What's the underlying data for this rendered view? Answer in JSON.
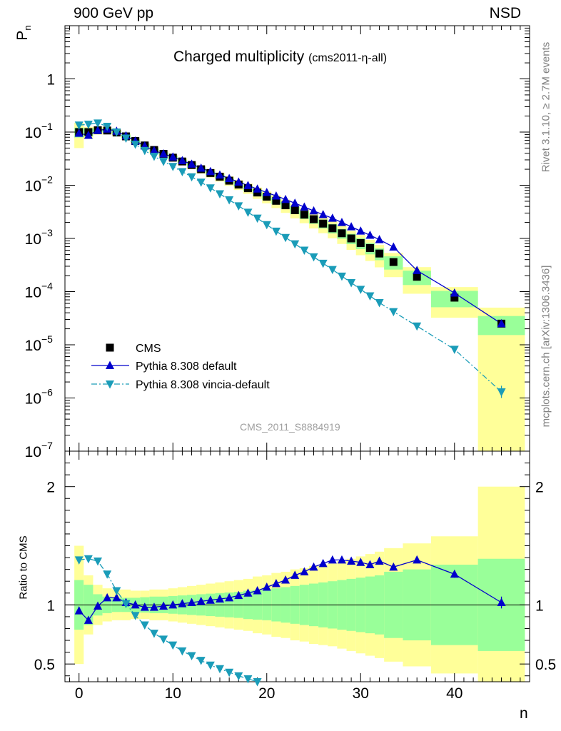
{
  "header": {
    "energy_label": "900 GeV pp",
    "process_label": "NSD"
  },
  "side_labels": {
    "rivet": "Rivet 3.1.10, ≥ 2.7M events",
    "mcplots": "mcplots.cern.ch [arXiv:1306.3436]"
  },
  "chart_data": {
    "type": "scatter",
    "title_main": "Charged multiplicity",
    "title_sub": "(cms2011-η-all)",
    "watermark": "CMS_2011_S8884919",
    "xlabel": "n",
    "ylabel_top": "P",
    "ylabel_top_sub": "n",
    "ylabel_bottom": "Ratio to CMS",
    "top_ylog": true,
    "top_ylim": [
      1e-07,
      10
    ],
    "top_yticks": [
      {
        "v": 1,
        "label": "1",
        "exp": ""
      },
      {
        "v": 0.1,
        "label": "10",
        "exp": "−1"
      },
      {
        "v": 0.01,
        "label": "10",
        "exp": "−2"
      },
      {
        "v": 0.001,
        "label": "10",
        "exp": "−3"
      },
      {
        "v": 0.0001,
        "label": "10",
        "exp": "−4"
      },
      {
        "v": 1e-05,
        "label": "10",
        "exp": "−5"
      },
      {
        "v": 1e-06,
        "label": "10",
        "exp": "−6"
      },
      {
        "v": 1e-07,
        "label": "10",
        "exp": "−7"
      }
    ],
    "xlim": [
      -1.5,
      48
    ],
    "xticks": [
      0,
      10,
      20,
      30,
      40
    ],
    "bottom_ylim": [
      0.35,
      2.3
    ],
    "bottom_yticks": [
      {
        "v": 0.5,
        "label": "0.5"
      },
      {
        "v": 1,
        "label": "1"
      },
      {
        "v": 2,
        "label": "2"
      }
    ],
    "legend": [
      {
        "name": "CMS",
        "marker": "square",
        "color": "#000000"
      },
      {
        "name": "Pythia 8.308 default",
        "marker": "triangle-up",
        "color": "#0000cc"
      },
      {
        "name": "Pythia 8.308 vincia-default",
        "marker": "triangle-down",
        "color": "#1a9cb8"
      }
    ],
    "series": [
      {
        "name": "CMS",
        "x": [
          0,
          1,
          2,
          3,
          4,
          5,
          6,
          7,
          8,
          9,
          10,
          11,
          12,
          13,
          14,
          15,
          16,
          17,
          18,
          19,
          20,
          21,
          22,
          23,
          24,
          25,
          26,
          27,
          28,
          29,
          30,
          31,
          32,
          33.5,
          36,
          40,
          45
        ],
        "y": [
          0.1,
          0.1,
          0.108,
          0.107,
          0.098,
          0.083,
          0.068,
          0.056,
          0.046,
          0.039,
          0.033,
          0.028,
          0.024,
          0.02,
          0.017,
          0.0145,
          0.0122,
          0.0103,
          0.0088,
          0.0073,
          0.0061,
          0.0051,
          0.0042,
          0.0034,
          0.0028,
          0.0023,
          0.0019,
          0.00155,
          0.00125,
          0.001,
          0.00082,
          0.00066,
          0.00052,
          0.00036,
          0.00019,
          7.7e-05,
          2.5e-05
        ]
      },
      {
        "name": "Pythia 8.308 default",
        "x": [
          0,
          1,
          2,
          3,
          4,
          5,
          6,
          7,
          8,
          9,
          10,
          11,
          12,
          13,
          14,
          15,
          16,
          17,
          18,
          19,
          20,
          21,
          22,
          23,
          24,
          25,
          26,
          27,
          28,
          29,
          30,
          31,
          32,
          33.5,
          36,
          40,
          45
        ],
        "y": [
          0.095,
          0.087,
          0.107,
          0.114,
          0.104,
          0.085,
          0.068,
          0.055,
          0.045,
          0.039,
          0.034,
          0.029,
          0.025,
          0.021,
          0.0181,
          0.0156,
          0.0134,
          0.0115,
          0.0099,
          0.0085,
          0.0073,
          0.0063,
          0.0054,
          0.0046,
          0.0039,
          0.0033,
          0.0028,
          0.0024,
          0.002,
          0.00166,
          0.00138,
          0.00115,
          0.00095,
          0.00069,
          0.00025,
          9.4e-05,
          2.5e-05
        ]
      },
      {
        "name": "Pythia 8.308 vincia-default",
        "x": [
          0,
          1,
          2,
          3,
          4,
          5,
          6,
          7,
          8,
          9,
          10,
          11,
          12,
          13,
          14,
          15,
          16,
          17,
          18,
          19,
          20,
          21,
          22,
          23,
          24,
          25,
          26,
          27,
          28,
          29,
          30,
          31,
          32,
          33.5,
          36,
          40,
          45
        ],
        "y": [
          0.135,
          0.14,
          0.148,
          0.128,
          0.1,
          0.077,
          0.059,
          0.045,
          0.035,
          0.028,
          0.0225,
          0.018,
          0.0144,
          0.0114,
          0.0089,
          0.0069,
          0.0053,
          0.0041,
          0.0031,
          0.0024,
          0.00181,
          0.00137,
          0.00104,
          0.00079,
          0.0006,
          0.00045,
          0.00034,
          0.00026,
          0.000195,
          0.000147,
          0.00011,
          8.3e-05,
          6.2e-05,
          4.2e-05,
          2.25e-05,
          8.2e-06,
          1.3e-06
        ]
      }
    ],
    "ratios": [
      {
        "name": "Pythia 8.308 default",
        "x": [
          0,
          1,
          2,
          3,
          4,
          5,
          6,
          7,
          8,
          9,
          10,
          11,
          12,
          13,
          14,
          15,
          16,
          17,
          18,
          19,
          20,
          21,
          22,
          23,
          24,
          25,
          26,
          27,
          28,
          29,
          30,
          31,
          32,
          33.5,
          36,
          40,
          45
        ],
        "y": [
          0.95,
          0.87,
          0.99,
          1.06,
          1.06,
          1.02,
          1.0,
          0.98,
          0.98,
          0.99,
          1.0,
          1.01,
          1.02,
          1.03,
          1.04,
          1.05,
          1.06,
          1.08,
          1.1,
          1.12,
          1.15,
          1.18,
          1.21,
          1.25,
          1.28,
          1.32,
          1.35,
          1.38,
          1.38,
          1.37,
          1.36,
          1.34,
          1.37,
          1.32,
          1.38,
          1.26,
          1.02
        ]
      },
      {
        "name": "Pythia 8.308 vincia-default",
        "x": [
          0,
          1,
          2,
          3,
          4,
          5,
          6,
          7,
          8,
          9,
          10,
          11,
          12,
          13,
          14,
          15,
          16,
          17,
          18,
          19
        ],
        "y": [
          1.38,
          1.39,
          1.37,
          1.26,
          1.12,
          1.01,
          0.91,
          0.83,
          0.76,
          0.71,
          0.66,
          0.61,
          0.57,
          0.53,
          0.49,
          0.46,
          0.43,
          0.4,
          0.375,
          0.35
        ]
      }
    ],
    "uncertainty_bands": {
      "edges": [
        -0.5,
        0.5,
        1.5,
        2.5,
        3.5,
        4.5,
        5.5,
        6.5,
        7.5,
        8.5,
        9.5,
        10.5,
        11.5,
        12.5,
        13.5,
        14.5,
        15.5,
        16.5,
        17.5,
        18.5,
        19.5,
        20.5,
        21.5,
        22.5,
        23.5,
        24.5,
        25.5,
        26.5,
        27.5,
        28.5,
        29.5,
        30.5,
        31.5,
        32.5,
        34.5,
        37.5,
        42.5,
        47.5
      ],
      "inner_half_width": [
        0.21,
        0.17,
        0.09,
        0.07,
        0.06,
        0.06,
        0.06,
        0.065,
        0.07,
        0.07,
        0.075,
        0.08,
        0.085,
        0.09,
        0.095,
        0.1,
        0.105,
        0.11,
        0.12,
        0.125,
        0.13,
        0.14,
        0.15,
        0.16,
        0.17,
        0.18,
        0.19,
        0.2,
        0.21,
        0.22,
        0.23,
        0.24,
        0.25,
        0.28,
        0.3,
        0.34,
        0.39
      ],
      "outer_half_width": [
        0.5,
        0.25,
        0.17,
        0.14,
        0.13,
        0.13,
        0.12,
        0.12,
        0.13,
        0.13,
        0.14,
        0.15,
        0.16,
        0.17,
        0.18,
        0.19,
        0.2,
        0.21,
        0.22,
        0.24,
        0.25,
        0.27,
        0.28,
        0.3,
        0.31,
        0.33,
        0.34,
        0.35,
        0.37,
        0.39,
        0.41,
        0.43,
        0.45,
        0.48,
        0.52,
        0.58,
        1.0
      ],
      "inner_color": "#99ff99",
      "outer_color": "#ffff99"
    }
  }
}
